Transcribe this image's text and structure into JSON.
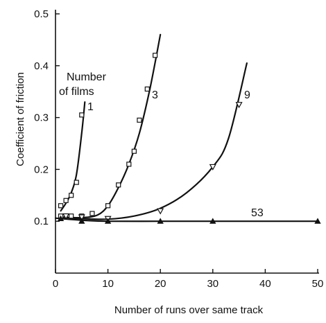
{
  "chart_data": {
    "type": "scatter",
    "title": "",
    "xlabel": "Number of runs over same track",
    "ylabel": "Coefficient of friction",
    "xlim": [
      0,
      50
    ],
    "ylim": [
      0,
      0.5
    ],
    "x_ticks": [
      "0",
      "10",
      "20",
      "30",
      "40",
      "50"
    ],
    "y_ticks": [
      "0.1",
      "0.2",
      "0.3",
      "0.4",
      "0.5"
    ],
    "grid": false,
    "annotations": {
      "legend_title_line1": "Number",
      "legend_title_line2": "of films"
    },
    "series": [
      {
        "name": "1",
        "marker": "square",
        "x": [
          1,
          2,
          3,
          4,
          5
        ],
        "y": [
          0.13,
          0.14,
          0.15,
          0.175,
          0.305
        ],
        "curve_x": [
          1,
          2,
          3,
          4,
          5,
          5.6
        ],
        "curve_y": [
          0.12,
          0.135,
          0.155,
          0.19,
          0.27,
          0.33
        ]
      },
      {
        "name": "3",
        "marker": "square",
        "x": [
          1,
          3,
          5,
          7,
          10,
          12,
          14,
          15,
          16,
          17.5,
          19
        ],
        "y": [
          0.11,
          0.11,
          0.11,
          0.115,
          0.13,
          0.17,
          0.21,
          0.235,
          0.295,
          0.355,
          0.42
        ],
        "curve_x": [
          1,
          5,
          8,
          10,
          12,
          14,
          16,
          18,
          20
        ],
        "curve_y": [
          0.108,
          0.107,
          0.112,
          0.13,
          0.165,
          0.21,
          0.27,
          0.355,
          0.46
        ]
      },
      {
        "name": "9",
        "marker": "inverted-triangle",
        "x": [
          2,
          5,
          10,
          20,
          30,
          35
        ],
        "y": [
          0.11,
          0.108,
          0.105,
          0.12,
          0.205,
          0.325
        ],
        "curve_x": [
          1,
          5,
          10,
          15,
          20,
          25,
          30,
          33,
          36.5
        ],
        "curve_y": [
          0.108,
          0.105,
          0.104,
          0.11,
          0.125,
          0.155,
          0.205,
          0.26,
          0.405
        ]
      },
      {
        "name": "53",
        "marker": "triangle",
        "x": [
          1,
          5,
          10,
          20,
          30,
          50
        ],
        "y": [
          0.105,
          0.1,
          0.1,
          0.1,
          0.1,
          0.1
        ],
        "curve_x": [
          0,
          5,
          10,
          20,
          30,
          50
        ],
        "curve_y": [
          0.106,
          0.102,
          0.1,
          0.1,
          0.1,
          0.1
        ]
      }
    ]
  }
}
